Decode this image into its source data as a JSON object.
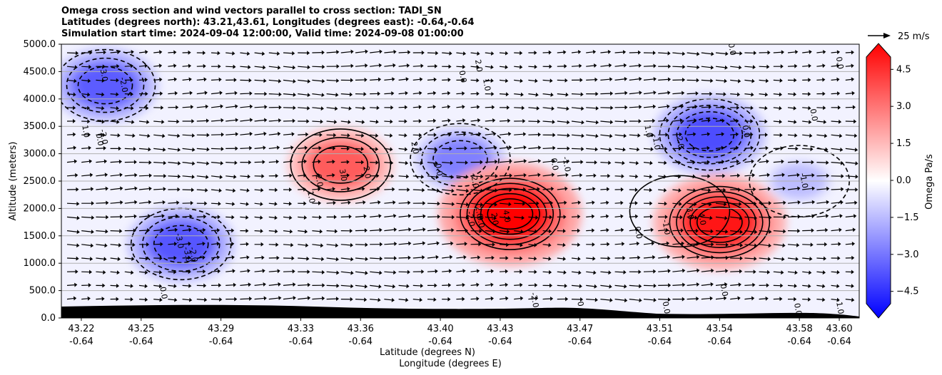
{
  "title_lines": [
    "Omega cross section and wind vectors parallel to cross section: TADI_SN",
    "Latitudes (degrees north): 43.21,43.61, Longitudes (degrees east): -0.64,-0.64",
    "Simulation start time: 2024-09-04 12:00:00, Valid time: 2024-09-08 01:00:00"
  ],
  "chart_data": {
    "type": "heatmap",
    "subtype": "cross-section filled contours with wind vectors",
    "ylabel": "Altitude (meters)",
    "xlabel_line1": "Latitude (degrees N)",
    "xlabel_line2": "Longitude (degrees E)",
    "ylim": [
      0,
      5000
    ],
    "y_ticks": [
      "0.0",
      "500.0",
      "1000.0",
      "1500.0",
      "2000.0",
      "2500.0",
      "3000.0",
      "3500.0",
      "4000.0",
      "4500.0",
      "5000.0"
    ],
    "x_ticks_lat": [
      "43.22",
      "43.25",
      "43.29",
      "43.33",
      "43.36",
      "43.40",
      "43.43",
      "43.47",
      "43.51",
      "43.54",
      "43.58",
      "43.60"
    ],
    "x_ticks_lon": [
      "-0.64",
      "-0.64",
      "-0.64",
      "-0.64",
      "-0.64",
      "-0.64",
      "-0.64",
      "-0.64",
      "-0.64",
      "-0.64",
      "-0.64",
      "-0.64"
    ],
    "grid": "horizontal",
    "colorbar": {
      "label": "Omega Pa/s",
      "range": [
        -5.0,
        5.0
      ],
      "ticks": [
        "4.5",
        "3.0",
        "1.5",
        "0.0",
        "−1.5",
        "−3.0",
        "−4.5"
      ],
      "colormap": "bwr",
      "color_low": "#0000ff",
      "color_mid": "#ffffff",
      "color_high": "#ff0000"
    },
    "quiver_key": "25 m/s",
    "omega_features": [
      {
        "lat": 43.232,
        "alt": 4250,
        "omega": -3.2
      },
      {
        "lat": 43.27,
        "alt": 1350,
        "omega": -3.3
      },
      {
        "lat": 43.35,
        "alt": 2800,
        "omega": 3.2
      },
      {
        "lat": 43.41,
        "alt": 2900,
        "omega": -2.5
      },
      {
        "lat": 43.435,
        "alt": 1900,
        "omega": 5.0
      },
      {
        "lat": 43.52,
        "alt": 1950,
        "omega": 0.5
      },
      {
        "lat": 43.535,
        "alt": 3350,
        "omega": -3.5
      },
      {
        "lat": 43.54,
        "alt": 1750,
        "omega": 4.5
      },
      {
        "lat": 43.58,
        "alt": 2500,
        "omega": -1.3
      }
    ],
    "contour_labels": [
      {
        "text": "-3.0",
        "lat": 43.23,
        "alt": 4450
      },
      {
        "text": "-2.0",
        "lat": 43.24,
        "alt": 4250
      },
      {
        "text": "-2.0",
        "lat": 43.23,
        "alt": 3300
      },
      {
        "text": "1.0",
        "lat": 43.221,
        "alt": 3400
      },
      {
        "text": "0.0",
        "lat": 43.228,
        "alt": 3250
      },
      {
        "text": "-3.0",
        "lat": 43.268,
        "alt": 1400
      },
      {
        "text": "-3.0",
        "lat": 43.272,
        "alt": 1150
      },
      {
        "text": "-2.0",
        "lat": 43.275,
        "alt": 1150
      },
      {
        "text": "0.0",
        "lat": 43.26,
        "alt": 450
      },
      {
        "text": "1.0",
        "lat": 43.334,
        "alt": 2200
      },
      {
        "text": "2.0",
        "lat": 43.338,
        "alt": 2500
      },
      {
        "text": "3.0",
        "lat": 43.35,
        "alt": 2600
      },
      {
        "text": "2.0",
        "lat": 43.362,
        "alt": 2650
      },
      {
        "text": "2.0",
        "lat": 43.386,
        "alt": 3100
      },
      {
        "text": "0.0",
        "lat": 43.398,
        "alt": 2700
      },
      {
        "text": "-2.0",
        "lat": 43.416,
        "alt": 2500
      },
      {
        "text": "-2.0",
        "lat": 43.418,
        "alt": 1950
      },
      {
        "text": "-2.0",
        "lat": 43.414,
        "alt": 1800
      },
      {
        "text": "0.0",
        "lat": 43.41,
        "alt": 4400
      },
      {
        "text": "2.0",
        "lat": 43.418,
        "alt": 4600
      },
      {
        "text": "1.0",
        "lat": 43.422,
        "alt": 4250
      },
      {
        "text": "0.0",
        "lat": 43.419,
        "alt": 1750
      },
      {
        "text": "2.0",
        "lat": 43.426,
        "alt": 1800
      },
      {
        "text": "4.0",
        "lat": 43.432,
        "alt": 1850
      },
      {
        "text": "-1.0",
        "lat": 43.462,
        "alt": 2800
      },
      {
        "text": "0.0",
        "lat": 43.456,
        "alt": 2800
      },
      {
        "text": "-2.0",
        "lat": 43.446,
        "alt": 320
      },
      {
        "text": "0",
        "lat": 43.469,
        "alt": 250
      },
      {
        "text": "0.0",
        "lat": 43.498,
        "alt": 1550
      },
      {
        "text": "1.0",
        "lat": 43.503,
        "alt": 3400
      },
      {
        "text": "-1.0",
        "lat": 43.507,
        "alt": 3200
      },
      {
        "text": "2.0",
        "lat": 43.519,
        "alt": 3200
      },
      {
        "text": "-1.0",
        "lat": 43.512,
        "alt": 1650
      },
      {
        "text": "3.0",
        "lat": 43.524,
        "alt": 1900
      },
      {
        "text": "4.0",
        "lat": 43.53,
        "alt": 1800
      },
      {
        "text": "0.0",
        "lat": 43.545,
        "alt": 4900
      },
      {
        "text": "0.0",
        "lat": 43.552,
        "alt": 3400
      },
      {
        "text": "0.0",
        "lat": 43.586,
        "alt": 3700
      },
      {
        "text": "-1.0",
        "lat": 43.581,
        "alt": 2500
      },
      {
        "text": "0.0",
        "lat": 43.541,
        "alt": 500
      },
      {
        "text": "0.0",
        "lat": 43.578,
        "alt": 150
      },
      {
        "text": "0.0",
        "lat": 43.512,
        "alt": 180
      },
      {
        "text": "0.0",
        "lat": 43.599,
        "alt": 4650
      },
      {
        "text": "-1.0",
        "lat": 43.599,
        "alt": 200
      }
    ]
  }
}
